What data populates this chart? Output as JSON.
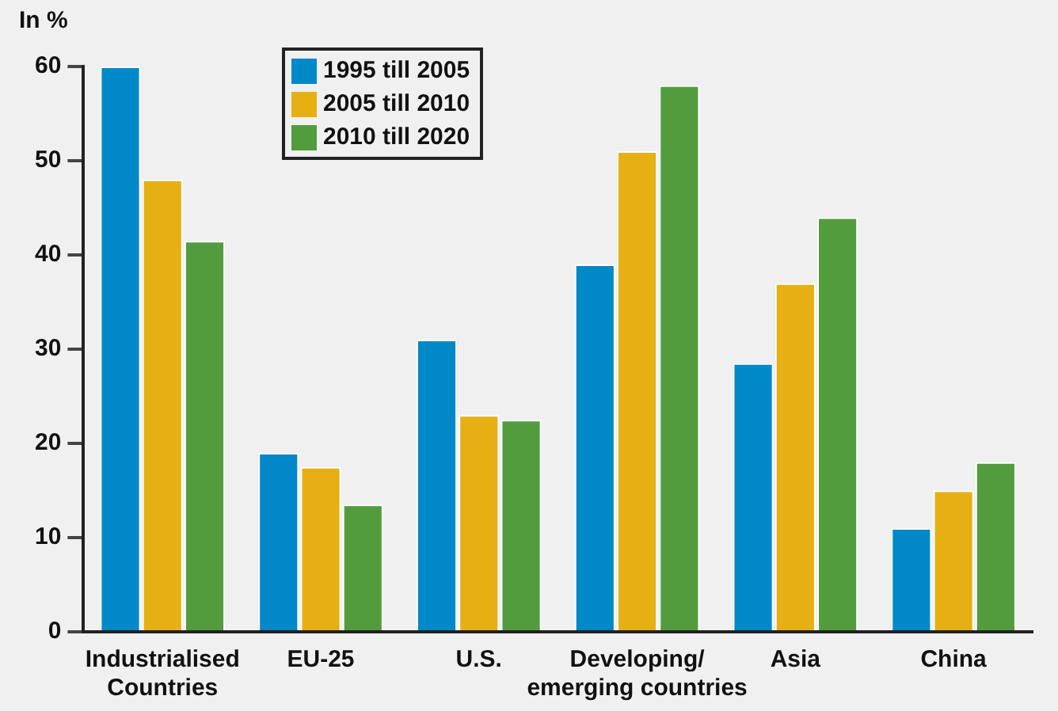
{
  "chart_data": {
    "type": "bar",
    "ylabel": "In %",
    "categories": [
      "Industrialised Countries",
      "EU-25",
      "U.S.",
      "Developing/ emerging countries",
      "Asia",
      "China"
    ],
    "series": [
      {
        "name": "1995 till 2005",
        "color": "#0088c8",
        "values": [
          60,
          19,
          31,
          39,
          28.5,
          11
        ]
      },
      {
        "name": "2005 till 2010",
        "color": "#e6b014",
        "values": [
          48,
          17.5,
          23,
          51,
          37,
          15
        ]
      },
      {
        "name": "2010 till 2020",
        "color": "#529c3e",
        "values": [
          41.5,
          13.5,
          22.5,
          58,
          44,
          18
        ]
      }
    ],
    "ylim": [
      0,
      60
    ],
    "yticks": [
      0,
      10,
      20,
      30,
      40,
      50,
      60
    ],
    "grid": false,
    "legend": "top left"
  }
}
